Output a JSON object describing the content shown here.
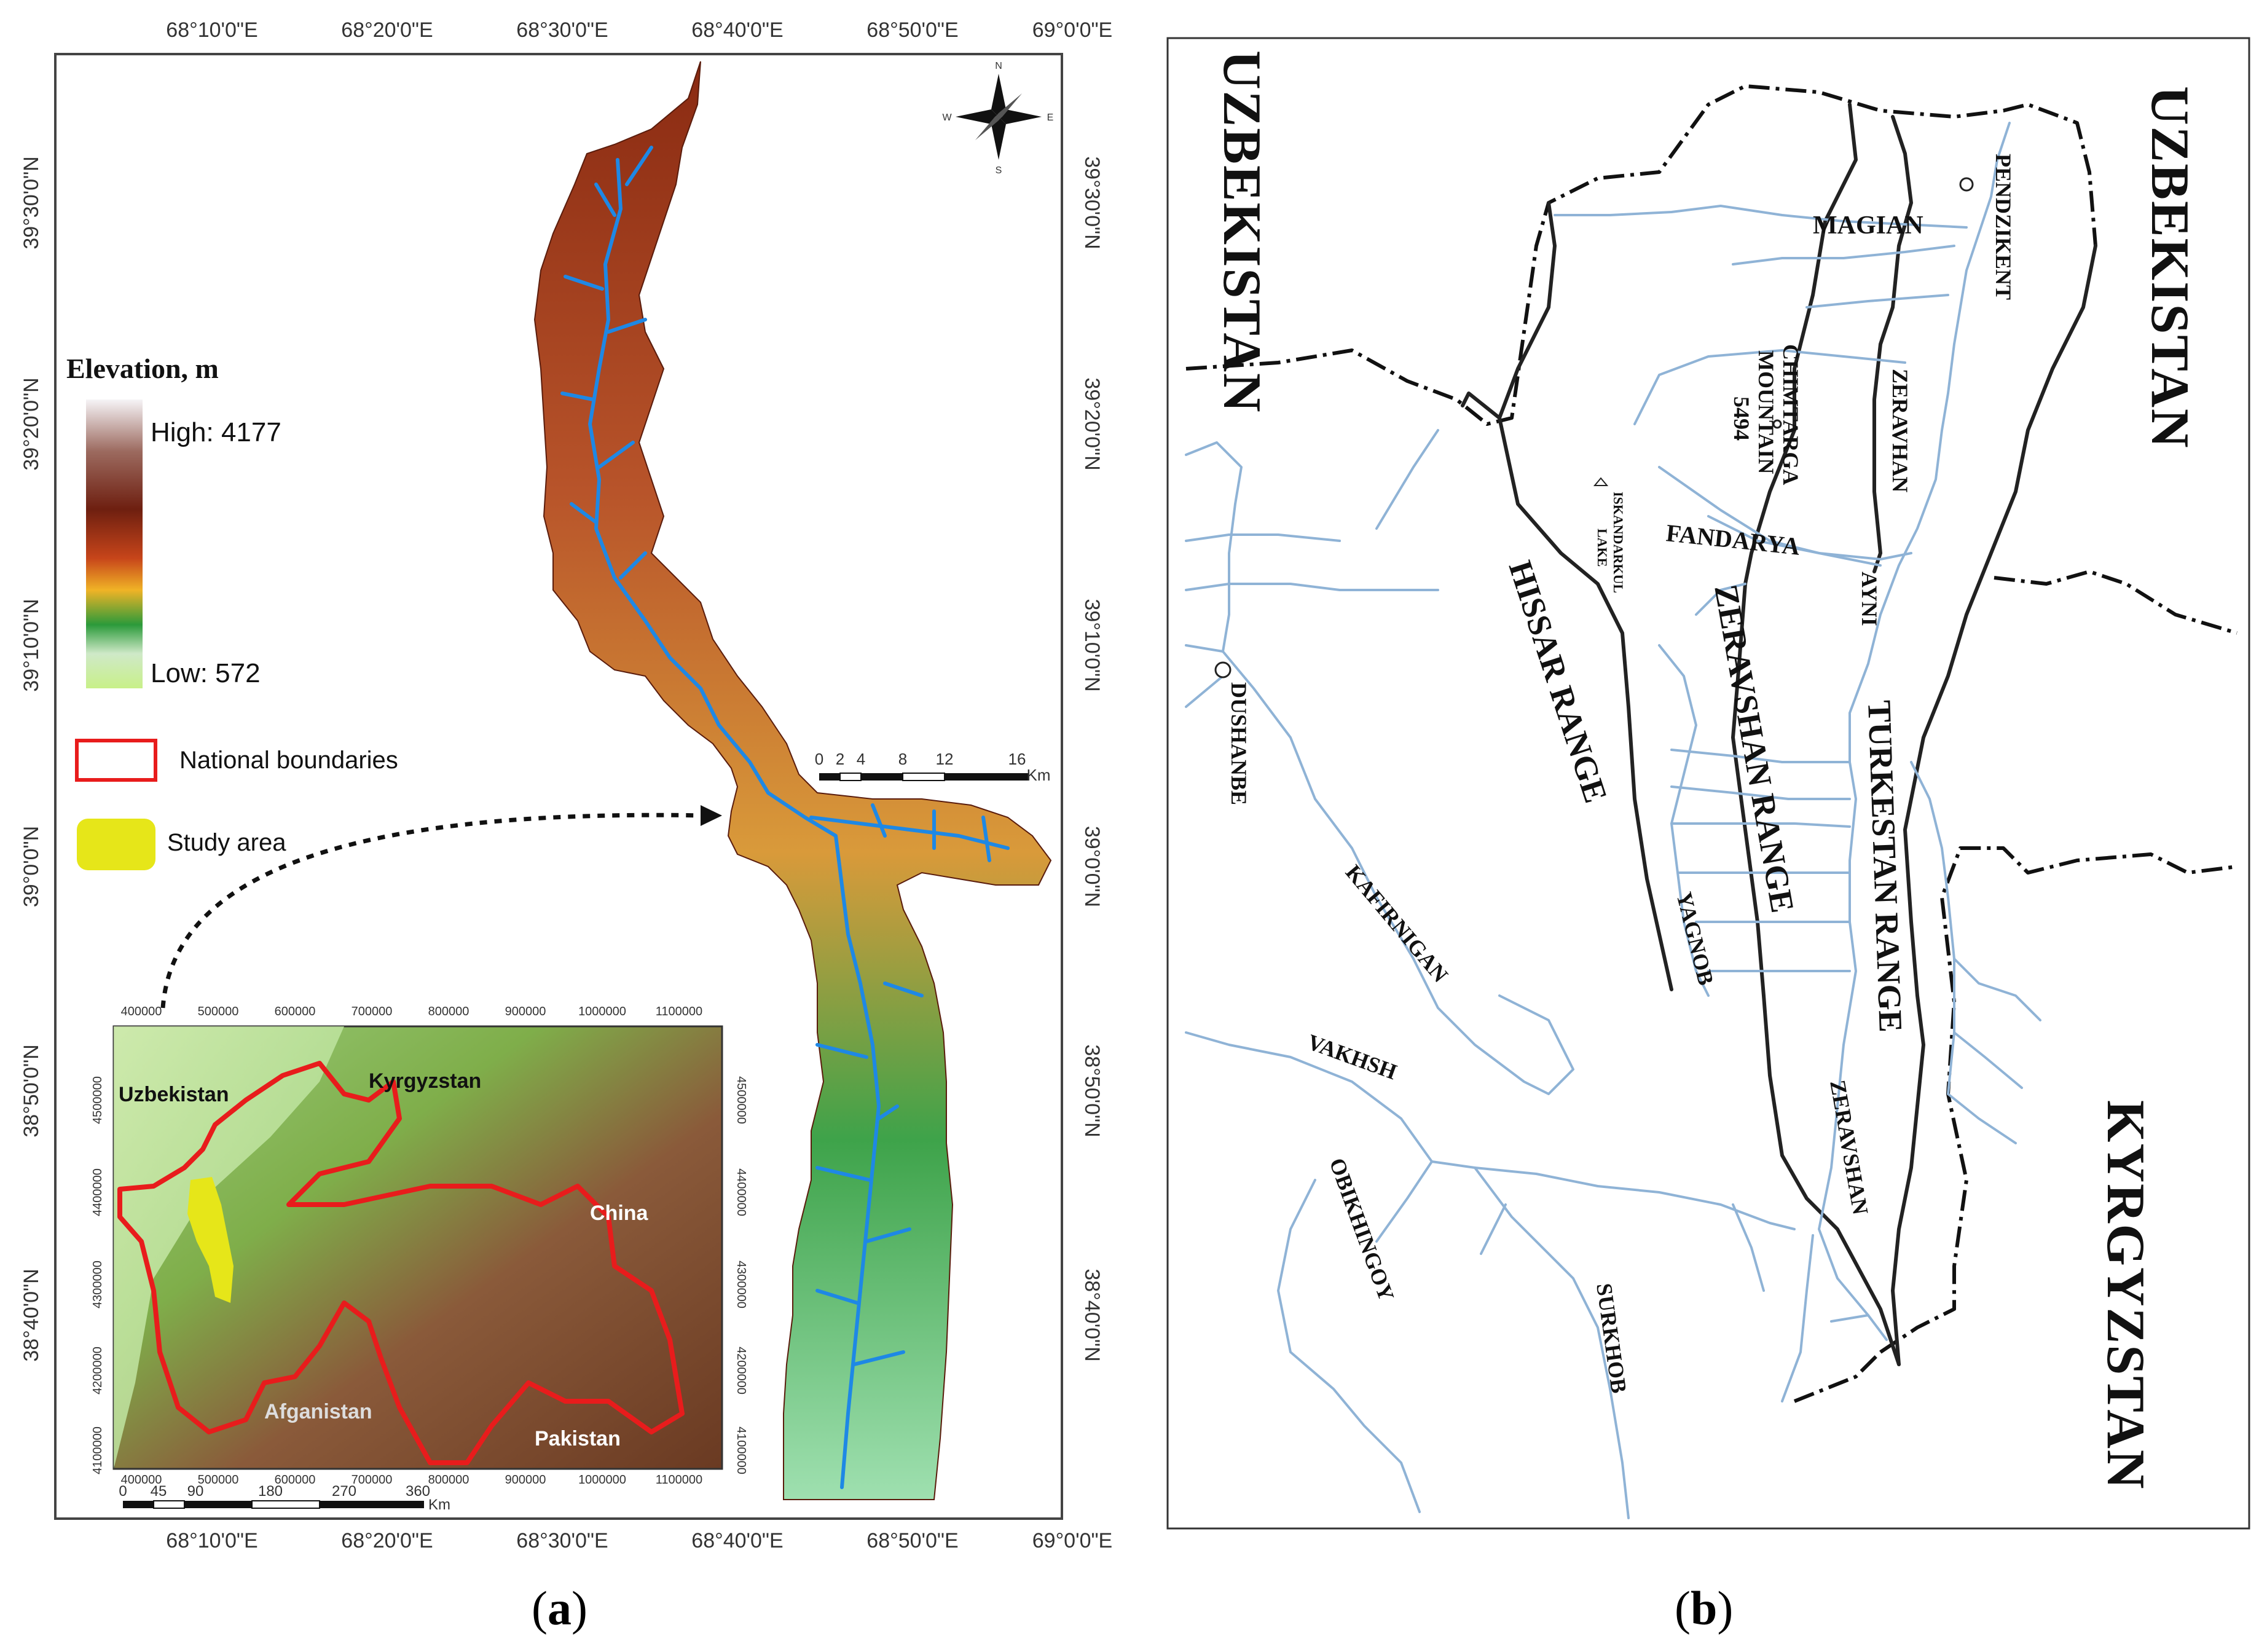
{
  "panel_a": {
    "caption_open": "(",
    "caption_letter": "a",
    "caption_close": ")",
    "top_lon_labels": [
      "68°10'0\"E",
      "68°20'0\"E",
      "68°30'0\"E",
      "68°40'0\"E",
      "68°50'0\"E",
      "69°0'0\"E"
    ],
    "bottom_lon_labels": [
      "68°10'0\"E",
      "68°20'0\"E",
      "68°30'0\"E",
      "68°40'0\"E",
      "68°50'0\"E",
      "69°0'0\"E"
    ],
    "left_lat_labels": [
      "39°30'0\"N",
      "39°20'0\"N",
      "39°10'0\"N",
      "39°0'0\"N",
      "38°50'0\"N",
      "38°40'0\"N"
    ],
    "right_lat_labels": [
      "39°30'0\"N",
      "39°20'0\"N",
      "39°10'0\"N",
      "39°0'0\"N",
      "38°50'0\"N",
      "38°40'0\"N"
    ],
    "legend": {
      "title": "Elevation, m",
      "high_label": "High: 4177",
      "low_label": "Low: 572",
      "boundaries_label": "National boundaries",
      "study_area_label": "Study area"
    },
    "scale_bar": {
      "ticks": [
        "0",
        "2",
        "4",
        "8",
        "12",
        "16"
      ],
      "unit": "Km"
    },
    "compass": {
      "n": "N",
      "s": "S",
      "e": "E",
      "w": "W"
    },
    "inset": {
      "top_x_labels": [
        "400000",
        "500000",
        "600000",
        "700000",
        "800000",
        "900000",
        "1000000",
        "1100000"
      ],
      "bottom_x_labels": [
        "400000",
        "500000",
        "600000",
        "700000",
        "800000",
        "900000",
        "1000000",
        "1100000"
      ],
      "left_y_labels": [
        "4500000",
        "4400000",
        "4300000",
        "4200000",
        "4100000"
      ],
      "right_y_labels": [
        "4500000",
        "4400000",
        "4300000",
        "4200000",
        "4100000"
      ],
      "countries": [
        "Uzbekistan",
        "Kyrgyzstan",
        "China",
        "Afganistan",
        "Pakistan"
      ],
      "scale_ticks": [
        "0",
        "45",
        "90",
        "180",
        "270",
        "360"
      ],
      "scale_unit": "Km"
    },
    "colors": {
      "river": "#1e88e5",
      "boundary": "#e81c1c",
      "study_area": "#e6e619"
    }
  },
  "panel_b": {
    "caption_open": "(",
    "caption_letter": "b",
    "caption_close": ")",
    "countries": [
      "UZBEKISTAN",
      "UZBEKISTAN",
      "KYRGYZSTAN"
    ],
    "ranges": [
      "HISSAR RANGE",
      "ZERAVSHAN RANGE",
      "TURKESTAN RANGE"
    ],
    "rivers": [
      "FANDARYA",
      "ZERAVHAN",
      "ZERAVSHAN",
      "KAFIRNIGAN",
      "VAKHSH",
      "OBIKHINGOY",
      "SURKHOB",
      "YAGNOB",
      "MAGIAN"
    ],
    "places": [
      "PENDZIKENT",
      "AYNI",
      "DUSHANBE"
    ],
    "mountain": {
      "name_line1": "CHIMTARGA",
      "name_line2": "MOUNTAIN",
      "elevation": "5494"
    },
    "lake": {
      "line1": "ISKANDARKUL",
      "line2": "LAKE"
    },
    "colors": {
      "river": "#8fb3d6",
      "border": "#111111"
    }
  }
}
